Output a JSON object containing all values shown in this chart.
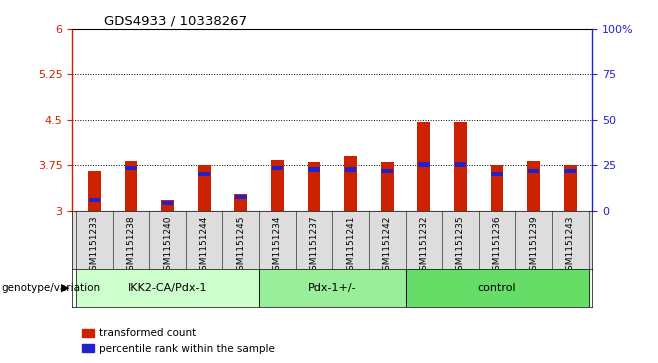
{
  "title": "GDS4933 / 10338267",
  "samples": [
    "GSM1151233",
    "GSM1151238",
    "GSM1151240",
    "GSM1151244",
    "GSM1151245",
    "GSM1151234",
    "GSM1151237",
    "GSM1151241",
    "GSM1151242",
    "GSM1151232",
    "GSM1151235",
    "GSM1151236",
    "GSM1151239",
    "GSM1151243"
  ],
  "red_values": [
    3.65,
    3.82,
    3.17,
    3.75,
    3.28,
    3.84,
    3.8,
    3.9,
    3.8,
    4.47,
    4.47,
    3.75,
    3.82,
    3.75
  ],
  "blue_values": [
    3.18,
    3.7,
    3.12,
    3.6,
    3.22,
    3.7,
    3.68,
    3.68,
    3.65,
    3.76,
    3.76,
    3.6,
    3.65,
    3.65
  ],
  "ylim_left": [
    3.0,
    6.0
  ],
  "ylim_right": [
    0,
    100
  ],
  "yticks_left": [
    3.0,
    3.75,
    4.5,
    5.25,
    6.0
  ],
  "ytick_labels_left": [
    "3",
    "3.75",
    "4.5",
    "5.25",
    "6"
  ],
  "yticks_right": [
    0,
    25,
    50,
    75,
    100
  ],
  "ytick_labels_right": [
    "0",
    "25",
    "50",
    "75",
    "100%"
  ],
  "dotted_lines": [
    3.75,
    4.5,
    5.25
  ],
  "groups": [
    {
      "label": "IKK2-CA/Pdx-1",
      "start": 0,
      "end": 5
    },
    {
      "label": "Pdx-1+/-",
      "start": 5,
      "end": 9
    },
    {
      "label": "control",
      "start": 9,
      "end": 14
    }
  ],
  "group_colors": [
    "#ccffcc",
    "#99ee99",
    "#66dd66"
  ],
  "bar_color_red": "#cc2200",
  "bar_color_blue": "#2222cc",
  "bar_width": 0.35,
  "left_axis_color": "#cc2200",
  "right_axis_color": "#2222cc",
  "sample_box_color": "#dddddd",
  "legend_red": "transformed count",
  "legend_blue": "percentile rank within the sample"
}
